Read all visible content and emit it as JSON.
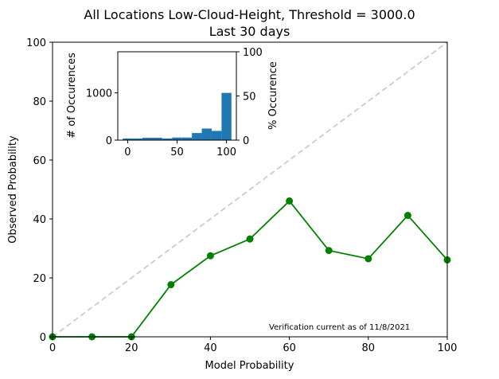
{
  "chart_data": [
    {
      "type": "line",
      "title": "All Locations Low-Cloud-Height, Threshold = 3000.0",
      "subtitle": "Last 30 days",
      "xlabel": "Model Probability",
      "ylabel": "Observed Probability",
      "xlim": [
        0,
        100
      ],
      "ylim": [
        0,
        100
      ],
      "xticks": [
        "0",
        "20",
        "40",
        "60",
        "80",
        "100"
      ],
      "yticks": [
        "0",
        "20",
        "40",
        "60",
        "80",
        "100"
      ],
      "grid": false,
      "reference_line": "y = x (dashed, light gray)",
      "series": [
        {
          "color": "#008000",
          "x": [
            0,
            10,
            20,
            30,
            40,
            50,
            60,
            70,
            80,
            90,
            100
          ],
          "y": [
            0,
            0,
            0,
            17.7,
            27.5,
            33.2,
            46.1,
            29.3,
            26.5,
            41.2,
            26.1
          ]
        }
      ],
      "annotation": "Verification current as of 11/8/2021"
    },
    {
      "type": "bar",
      "xlabel": "",
      "ylabel": "# of Occurences",
      "ylabel_right": "% Occurence",
      "xlim": [
        -10,
        110
      ],
      "ylim": [
        0,
        1870
      ],
      "ylim_right": [
        0,
        100
      ],
      "xticks": [
        "0",
        "50",
        "100"
      ],
      "yticks": [
        "0",
        "1000"
      ],
      "yticks_right": [
        "0",
        "50",
        "100"
      ],
      "color": "#1f77b4",
      "bins": [
        {
          "x0": -5,
          "x1": 5,
          "value": 35
        },
        {
          "x0": 5,
          "x1": 15,
          "value": 35
        },
        {
          "x0": 15,
          "x1": 25,
          "value": 50
        },
        {
          "x0": 25,
          "x1": 35,
          "value": 50
        },
        {
          "x0": 35,
          "x1": 45,
          "value": 35
        },
        {
          "x0": 45,
          "x1": 55,
          "value": 55
        },
        {
          "x0": 55,
          "x1": 65,
          "value": 55
        },
        {
          "x0": 65,
          "x1": 75,
          "value": 150
        },
        {
          "x0": 75,
          "x1": 85,
          "value": 245
        },
        {
          "x0": 85,
          "x1": 95,
          "value": 195
        },
        {
          "x0": 95,
          "x1": 105,
          "value": 1000
        }
      ]
    }
  ]
}
